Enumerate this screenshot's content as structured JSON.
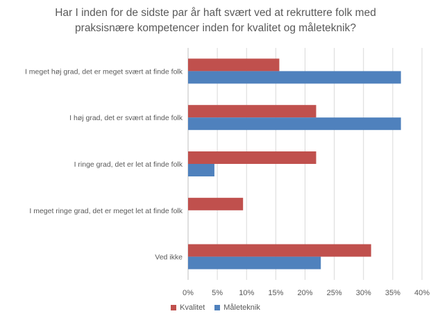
{
  "chart_data": {
    "type": "bar",
    "orientation": "horizontal",
    "title_lines": [
      "Har I inden for de sidste par år haft svært ved at rekruttere folk med",
      "praksisnære kompetencer inden for kvalitet og måleteknik?"
    ],
    "categories": [
      "I meget høj grad, det er meget svært at finde folk",
      "I høj grad, det er svært at finde folk",
      "I ringe grad, det er let at finde folk",
      "I meget ringe grad, det er meget let at finde folk",
      "Ved ikke"
    ],
    "series": [
      {
        "name": "Kvalitet",
        "color": "#c0504d",
        "values": [
          15.6,
          21.9,
          21.9,
          9.4,
          31.3
        ]
      },
      {
        "name": "Måleteknik",
        "color": "#4f81bd",
        "values": [
          36.4,
          36.4,
          4.5,
          0,
          22.7
        ]
      }
    ],
    "xlim": [
      0,
      40
    ],
    "xticks": [
      "0%",
      "5%",
      "10%",
      "15%",
      "20%",
      "25%",
      "30%",
      "35%",
      "40%"
    ],
    "grid": true,
    "legend_position": "bottom"
  }
}
